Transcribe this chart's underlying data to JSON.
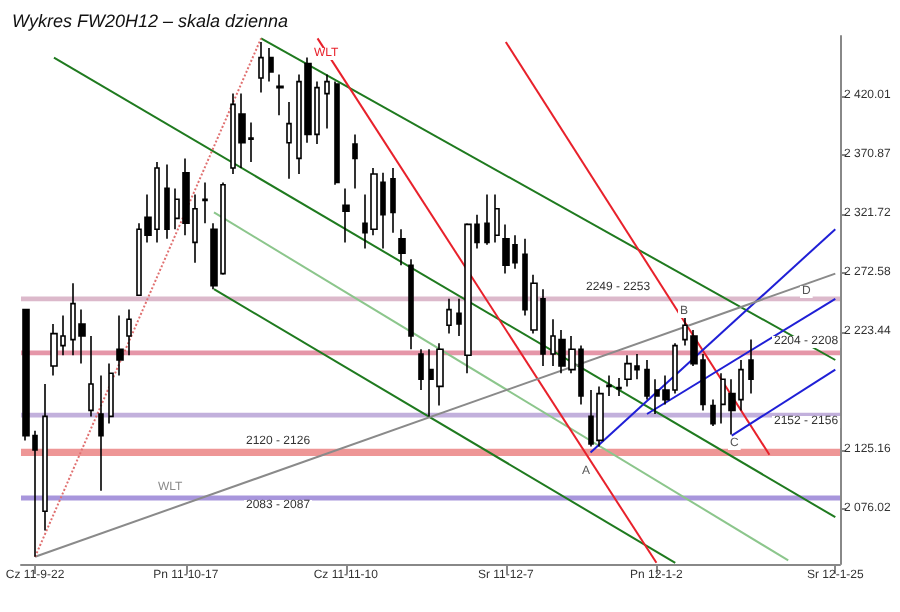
{
  "chart_data": {
    "type": "candlestick",
    "title": "Wykres FW20H12 – skala dzienna",
    "categories": [
      null,
      "Cz 11-9-22",
      null,
      null,
      null,
      null,
      null,
      null,
      null,
      null,
      null,
      null,
      null,
      null,
      null,
      null,
      null,
      "Pn 11-10-17",
      null,
      null,
      null,
      null,
      null,
      null,
      null,
      null,
      null,
      null,
      null,
      null,
      null,
      null,
      null,
      null,
      "Cz 11-11-10",
      null,
      null,
      null,
      null,
      null,
      null,
      null,
      null,
      null,
      null,
      null,
      null,
      null,
      null,
      null,
      null,
      "Sr 11-12-7",
      null,
      null,
      null,
      null,
      null,
      null,
      null,
      null,
      null,
      null,
      null,
      null,
      null,
      null,
      null,
      "Pn 12-1-2",
      null,
      null,
      null,
      null,
      null,
      null,
      null,
      null,
      null,
      null,
      null,
      null,
      null,
      null,
      null,
      null,
      null,
      null,
      "Sr 12-1-25"
    ],
    "ohlc": [
      [
        2242,
        2242,
        2133,
        2137
      ],
      [
        2137,
        2141,
        2036,
        2125
      ],
      [
        2074,
        2180,
        2058,
        2153
      ],
      [
        2195,
        2230,
        2187,
        2222
      ],
      [
        2212,
        2237,
        2204,
        2220
      ],
      [
        2217,
        2264,
        2204,
        2247
      ],
      [
        2230,
        2242,
        2197,
        2220
      ],
      [
        2158,
        2220,
        2153,
        2180
      ],
      [
        2155,
        2187,
        2091,
        2137
      ],
      [
        2153,
        2197,
        2147,
        2189
      ],
      [
        2209,
        2237,
        2187,
        2200
      ],
      [
        2220,
        2242,
        2204,
        2234
      ],
      [
        2254,
        2314,
        2254,
        2309
      ],
      [
        2319,
        2338,
        2298,
        2304
      ],
      [
        2309,
        2365,
        2298,
        2360
      ],
      [
        2343,
        2363,
        2301,
        2309
      ],
      [
        2318,
        2343,
        2309,
        2334
      ],
      [
        2356,
        2368,
        2304,
        2314
      ],
      [
        2298,
        2338,
        2281,
        2326
      ],
      [
        2334,
        2348,
        2314,
        2333
      ],
      [
        2309,
        2314,
        2259,
        2262
      ],
      [
        2272,
        2348,
        2271,
        2346
      ],
      [
        2360,
        2422,
        2355,
        2413
      ],
      [
        2405,
        2422,
        2360,
        2381
      ],
      [
        2385,
        2398,
        2365,
        2384
      ],
      [
        2435,
        2465,
        2423,
        2452
      ],
      [
        2452,
        2460,
        2432,
        2440
      ],
      [
        2428,
        2438,
        2404,
        2427
      ],
      [
        2381,
        2415,
        2351,
        2397
      ],
      [
        2368,
        2438,
        2355,
        2432
      ],
      [
        2447,
        2452,
        2381,
        2388
      ],
      [
        2388,
        2432,
        2380,
        2427
      ],
      [
        2422,
        2438,
        2393,
        2432
      ],
      [
        2430,
        2432,
        2346,
        2348
      ],
      [
        2329,
        2343,
        2298,
        2324
      ],
      [
        2380,
        2388,
        2343,
        2368
      ],
      [
        2314,
        2338,
        2293,
        2306
      ],
      [
        2309,
        2360,
        2304,
        2355
      ],
      [
        2348,
        2356,
        2293,
        2321
      ],
      [
        2351,
        2360,
        2306,
        2323
      ],
      [
        2301,
        2309,
        2279,
        2289
      ],
      [
        2279,
        2284,
        2209,
        2220
      ],
      [
        2205,
        2209,
        2175,
        2184
      ],
      [
        2192,
        2209,
        2153,
        2184
      ],
      [
        2178,
        2214,
        2162,
        2209
      ],
      [
        2229,
        2251,
        2222,
        2242
      ],
      [
        2239,
        2251,
        2220,
        2230
      ],
      [
        2204,
        2314,
        2189,
        2313
      ],
      [
        2313,
        2321,
        2293,
        2298
      ],
      [
        2314,
        2338,
        2296,
        2298
      ],
      [
        2304,
        2338,
        2298,
        2326
      ],
      [
        2301,
        2313,
        2272,
        2279
      ],
      [
        2296,
        2304,
        2276,
        2281
      ],
      [
        2288,
        2301,
        2237,
        2242
      ],
      [
        2225,
        2271,
        2222,
        2264
      ],
      [
        2251,
        2259,
        2195,
        2205
      ],
      [
        2205,
        2234,
        2195,
        2220
      ],
      [
        2217,
        2225,
        2189,
        2195
      ],
      [
        2192,
        2220,
        2189,
        2209
      ],
      [
        2209,
        2212,
        2163,
        2170
      ],
      [
        2153,
        2175,
        2128,
        2130
      ],
      [
        2133,
        2178,
        2128,
        2172
      ],
      [
        2179,
        2187,
        2170,
        2178
      ],
      [
        2177,
        2185,
        2170,
        2176
      ],
      [
        2184,
        2204,
        2178,
        2197
      ],
      [
        2195,
        2205,
        2184,
        2192
      ],
      [
        2192,
        2200,
        2167,
        2170
      ],
      [
        2175,
        2184,
        2155,
        2170
      ],
      [
        2175,
        2187,
        2163,
        2167
      ],
      [
        2175,
        2214,
        2172,
        2212
      ],
      [
        2217,
        2239,
        2212,
        2229
      ],
      [
        2220,
        2225,
        2195,
        2197
      ],
      [
        2200,
        2205,
        2158,
        2163
      ],
      [
        2162,
        2167,
        2145,
        2147
      ],
      [
        2163,
        2189,
        2147,
        2184
      ],
      [
        2172,
        2184,
        2138,
        2158
      ],
      [
        2167,
        2200,
        2158,
        2192
      ],
      [
        2200,
        2217,
        2172,
        2184
      ],
      null,
      null,
      null,
      null,
      null,
      null,
      null,
      null,
      null
    ],
    "series": [
      {
        "type": "line",
        "color": "#1f7a1f",
        "values": [
          null,
          null,
          null,
          null,
          null,
          null,
          null,
          null,
          null,
          null,
          null,
          null,
          null,
          null,
          null,
          null,
          null,
          null,
          null,
          null,
          null,
          null,
          null,
          null,
          null,
          2468,
          null,
          null,
          null,
          null,
          null,
          null,
          null,
          null,
          null,
          null,
          null,
          null,
          null,
          null,
          null,
          null,
          null,
          null,
          null,
          null,
          null,
          null,
          null,
          null,
          null,
          null,
          null,
          null,
          null,
          null,
          null,
          null,
          null,
          null,
          null,
          null,
          null,
          null,
          null,
          null,
          null,
          null,
          null,
          null,
          null,
          null,
          null,
          null,
          null,
          null,
          null,
          null,
          null,
          null,
          null,
          null,
          null,
          null,
          null,
          null,
          2200
        ]
      },
      {
        "type": "line",
        "color": "#1f7a1f",
        "values": [
          null,
          null,
          null,
          2452,
          null,
          null,
          null,
          null,
          null,
          null,
          null,
          null,
          null,
          null,
          null,
          null,
          null,
          null,
          null,
          null,
          null,
          null,
          null,
          null,
          null,
          null,
          null,
          null,
          null,
          null,
          null,
          null,
          null,
          null,
          null,
          null,
          null,
          null,
          null,
          null,
          null,
          null,
          null,
          null,
          null,
          null,
          null,
          null,
          null,
          null,
          null,
          null,
          null,
          null,
          null,
          null,
          null,
          null,
          null,
          null,
          null,
          null,
          null,
          null,
          null,
          null,
          null,
          null,
          null,
          null,
          null,
          null,
          null,
          null,
          null,
          null,
          null,
          null,
          null,
          null,
          null,
          null,
          null,
          null,
          null,
          null,
          2069
        ]
      },
      {
        "type": "line",
        "color": "#1f7a1f",
        "values": [
          null,
          null,
          null,
          null,
          null,
          null,
          null,
          null,
          null,
          null,
          null,
          null,
          null,
          null,
          null,
          null,
          null,
          null,
          null,
          null,
          2259,
          null,
          null,
          null,
          null,
          null,
          null,
          null,
          null,
          null,
          null,
          null,
          null,
          null,
          null,
          null,
          null,
          null,
          null,
          null,
          null,
          null,
          null,
          null,
          null,
          null,
          null,
          null,
          null,
          null,
          null,
          null,
          null,
          null,
          null,
          null,
          null,
          null,
          null,
          null,
          null,
          null,
          null,
          null,
          null,
          null,
          null,
          null,
          null,
          2031,
          null,
          null,
          null,
          null,
          null,
          null,
          null,
          null,
          null,
          null,
          null,
          null,
          null,
          null,
          null,
          null,
          null
        ]
      },
      {
        "type": "line",
        "color": "#8cc68c",
        "values": [
          null,
          null,
          null,
          null,
          null,
          null,
          null,
          null,
          null,
          null,
          null,
          null,
          null,
          null,
          null,
          null,
          null,
          null,
          null,
          null,
          2323,
          null,
          null,
          null,
          null,
          null,
          null,
          null,
          null,
          null,
          null,
          null,
          null,
          null,
          null,
          null,
          null,
          null,
          null,
          null,
          null,
          null,
          null,
          null,
          null,
          null,
          null,
          null,
          null,
          null,
          null,
          null,
          null,
          null,
          null,
          null,
          null,
          null,
          null,
          null,
          null,
          null,
          null,
          null,
          null,
          null,
          null,
          null,
          null,
          null,
          null,
          null,
          null,
          null,
          null,
          null,
          null,
          null,
          null,
          null,
          null,
          2033,
          null,
          null,
          null,
          null,
          null
        ]
      },
      {
        "type": "line",
        "color": "#e8212b",
        "values": [
          null,
          null,
          null,
          null,
          null,
          null,
          null,
          null,
          null,
          null,
          null,
          null,
          null,
          null,
          null,
          null,
          null,
          null,
          null,
          null,
          null,
          null,
          null,
          null,
          null,
          null,
          null,
          null,
          null,
          null,
          null,
          2468,
          null,
          null,
          null,
          null,
          null,
          null,
          null,
          null,
          null,
          null,
          null,
          null,
          null,
          null,
          null,
          null,
          null,
          null,
          null,
          null,
          null,
          null,
          null,
          null,
          null,
          null,
          null,
          null,
          null,
          null,
          null,
          null,
          null,
          null,
          null,
          2031,
          null,
          null,
          null,
          null,
          null,
          null,
          null,
          null,
          null,
          null,
          null,
          null,
          null,
          null,
          null,
          null,
          null,
          null,
          null
        ]
      },
      {
        "type": "line",
        "color": "#e8212b",
        "values": [
          null,
          null,
          null,
          null,
          null,
          null,
          null,
          null,
          null,
          null,
          null,
          null,
          null,
          null,
          null,
          null,
          null,
          null,
          null,
          null,
          null,
          null,
          null,
          null,
          null,
          null,
          null,
          null,
          null,
          null,
          null,
          null,
          null,
          null,
          null,
          null,
          null,
          null,
          null,
          null,
          null,
          null,
          null,
          null,
          null,
          null,
          null,
          null,
          null,
          null,
          null,
          2465,
          null,
          null,
          null,
          null,
          null,
          null,
          null,
          null,
          null,
          null,
          null,
          null,
          null,
          null,
          null,
          null,
          null,
          null,
          null,
          null,
          null,
          null,
          null,
          null,
          null,
          null,
          null,
          2121,
          null,
          null,
          null,
          null,
          null,
          null,
          null
        ]
      },
      {
        "type": "line",
        "color": "#1f1fd6",
        "values": [
          null,
          null,
          null,
          null,
          null,
          null,
          null,
          null,
          null,
          null,
          null,
          null,
          null,
          null,
          null,
          null,
          null,
          null,
          null,
          null,
          null,
          null,
          null,
          null,
          null,
          null,
          null,
          null,
          null,
          null,
          null,
          null,
          null,
          null,
          null,
          null,
          null,
          null,
          null,
          null,
          null,
          null,
          null,
          null,
          null,
          null,
          null,
          null,
          null,
          null,
          null,
          null,
          null,
          null,
          null,
          null,
          null,
          null,
          null,
          null,
          2123,
          null,
          null,
          null,
          null,
          null,
          null,
          null,
          null,
          null,
          null,
          null,
          null,
          null,
          null,
          null,
          null,
          null,
          null,
          null,
          null,
          null,
          null,
          null,
          null,
          null,
          2309
        ]
      },
      {
        "type": "line",
        "color": "#1f1fd6",
        "values": [
          null,
          null,
          null,
          null,
          null,
          null,
          null,
          null,
          null,
          null,
          null,
          null,
          null,
          null,
          null,
          null,
          null,
          null,
          null,
          null,
          null,
          null,
          null,
          null,
          null,
          null,
          null,
          null,
          null,
          null,
          null,
          null,
          null,
          null,
          null,
          null,
          null,
          null,
          null,
          null,
          null,
          null,
          null,
          null,
          null,
          null,
          null,
          null,
          null,
          null,
          null,
          null,
          null,
          null,
          null,
          null,
          null,
          null,
          null,
          null,
          null,
          null,
          null,
          null,
          null,
          null,
          2155,
          null,
          null,
          null,
          null,
          null,
          null,
          null,
          null,
          null,
          null,
          null,
          null,
          null,
          null,
          null,
          null,
          null,
          null,
          null,
          2251
        ]
      },
      {
        "type": "line",
        "color": "#1f1fd6",
        "values": [
          null,
          null,
          null,
          null,
          null,
          null,
          null,
          null,
          null,
          null,
          null,
          null,
          null,
          null,
          null,
          null,
          null,
          null,
          null,
          null,
          null,
          null,
          null,
          null,
          null,
          null,
          null,
          null,
          null,
          null,
          null,
          null,
          null,
          null,
          null,
          null,
          null,
          null,
          null,
          null,
          null,
          null,
          null,
          null,
          null,
          null,
          null,
          null,
          null,
          null,
          null,
          null,
          null,
          null,
          null,
          null,
          null,
          null,
          null,
          null,
          null,
          null,
          null,
          null,
          null,
          null,
          null,
          null,
          null,
          null,
          null,
          null,
          null,
          null,
          null,
          2137,
          null,
          null,
          null,
          null,
          null,
          null,
          null,
          null,
          null,
          null,
          2192
        ]
      },
      {
        "type": "line",
        "color": "#8a8a8a",
        "values": [
          null,
          2036,
          null,
          null,
          null,
          null,
          null,
          null,
          null,
          null,
          null,
          null,
          null,
          null,
          null,
          null,
          null,
          null,
          null,
          null,
          null,
          null,
          null,
          null,
          null,
          null,
          null,
          null,
          null,
          null,
          null,
          null,
          null,
          null,
          null,
          null,
          null,
          null,
          null,
          null,
          null,
          null,
          null,
          null,
          null,
          null,
          null,
          null,
          null,
          null,
          null,
          null,
          null,
          null,
          null,
          null,
          null,
          null,
          null,
          null,
          null,
          null,
          null,
          null,
          null,
          null,
          null,
          null,
          null,
          null,
          null,
          null,
          null,
          null,
          null,
          null,
          null,
          null,
          null,
          null,
          null,
          null,
          null,
          null,
          null,
          null,
          2272
        ]
      },
      {
        "type": "line",
        "color": "#e07070",
        "line_style": "dotted",
        "values": [
          null,
          2036,
          null,
          null,
          null,
          null,
          null,
          null,
          null,
          null,
          null,
          null,
          null,
          null,
          null,
          null,
          null,
          null,
          null,
          null,
          null,
          null,
          null,
          null,
          null,
          2468,
          null,
          null,
          null,
          null,
          null,
          null,
          null,
          null,
          null,
          null,
          null,
          null,
          null,
          null,
          null,
          null,
          null,
          null,
          null,
          null,
          null,
          null,
          null,
          null,
          null,
          null,
          null,
          null,
          null,
          null,
          null,
          null,
          null,
          null,
          null,
          null,
          null,
          null,
          null,
          null,
          null,
          null,
          null,
          null,
          null,
          null,
          null,
          null,
          null,
          null,
          null,
          null,
          null,
          null,
          null,
          null,
          null,
          null,
          null,
          null,
          null
        ]
      }
    ],
    "bands": [
      {
        "axis": "y",
        "from": 2249,
        "to": 2253,
        "label": "2249 - 2253",
        "color": "#c080a0"
      },
      {
        "axis": "y",
        "from": 2204,
        "to": 2208,
        "label": "2204 - 2208",
        "color": "#d04060"
      },
      {
        "axis": "y",
        "from": 2152,
        "to": 2156,
        "label": "2152 - 2156",
        "color": "#9070c0"
      },
      {
        "axis": "y",
        "from": 2120,
        "to": 2126,
        "label": "2120 - 2126",
        "color": "#e04040"
      },
      {
        "axis": "y",
        "from": 2083,
        "to": 2087,
        "label": "2083 - 2087",
        "color": "#6040c0"
      }
    ],
    "annotations": [
      "WLT",
      "WLT",
      "A",
      "B",
      "C",
      "D"
    ],
    "marker": "none",
    "ylim": [
      2030,
      2470
    ],
    "yticks": [
      {
        "value": 2076.02,
        "label": "2 076.02"
      },
      {
        "value": 2125.16,
        "label": "2 125.16"
      },
      {
        "value": 2223.44,
        "label": "2 223.44"
      },
      {
        "value": 2272.58,
        "label": "2 272.58"
      },
      {
        "value": 2321.72,
        "label": "2 321.72"
      },
      {
        "value": 2370.87,
        "label": "2 370.87"
      },
      {
        "value": 2420.01,
        "label": "2 420.01"
      }
    ]
  }
}
